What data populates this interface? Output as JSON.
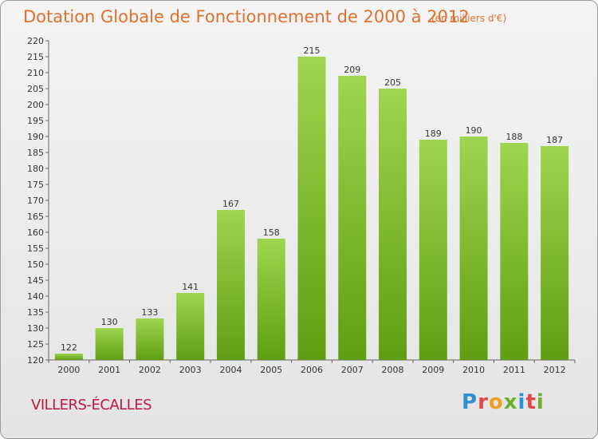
{
  "header": {
    "title": "Dotation Globale de Fonctionnement de 2000 à 2012",
    "unit": "(en milliers d'€)"
  },
  "footer": {
    "commune": "VILLERS-ÉCALLES",
    "logo": "Proxiti"
  },
  "colors": {
    "title": "#e0702c",
    "commune": "#c0183f",
    "bar_top": "#9fd54f",
    "bar_bottom": "#5f9e12"
  },
  "chart_data": {
    "type": "bar",
    "title": "Dotation Globale de Fonctionnement de 2000 à 2012",
    "categories": [
      "2000",
      "2001",
      "2002",
      "2003",
      "2004",
      "2005",
      "2006",
      "2007",
      "2008",
      "2009",
      "2010",
      "2011",
      "2012"
    ],
    "values": [
      122,
      130,
      133,
      141,
      167,
      158,
      215,
      209,
      205,
      189,
      190,
      188,
      187
    ],
    "ylim": [
      120,
      220
    ],
    "yticks": [
      120,
      125,
      130,
      135,
      140,
      145,
      150,
      155,
      160,
      165,
      170,
      175,
      180,
      185,
      190,
      195,
      200,
      205,
      210,
      215,
      220
    ],
    "grid": false
  }
}
